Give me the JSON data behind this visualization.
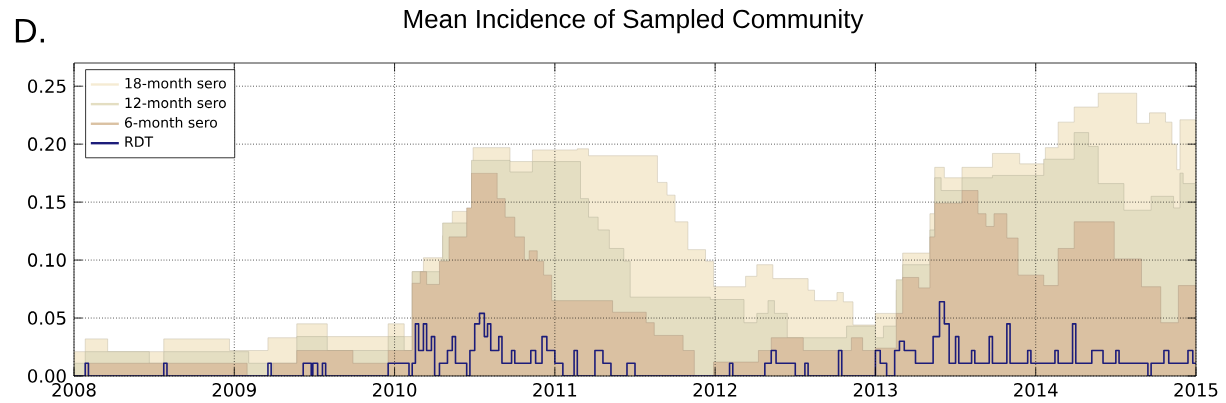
{
  "chart_data": {
    "type": "area",
    "title": "Mean Incidence of Sampled Community",
    "annotations": [
      "D."
    ],
    "xlim": [
      2008,
      2015
    ],
    "ylim": [
      0,
      0.27
    ],
    "xticks": [
      2008,
      2009,
      2010,
      2011,
      2012,
      2013,
      2014,
      2015
    ],
    "yticks": [
      {
        "value": 0,
        "label": "0.00"
      },
      {
        "value": 0.05,
        "label": "0.05"
      },
      {
        "value": 0.1,
        "label": "0.10"
      },
      {
        "value": 0.15,
        "label": "0.15"
      },
      {
        "value": 0.2,
        "label": "0.20"
      },
      {
        "value": 0.25,
        "label": "0.25"
      }
    ],
    "grid": true,
    "legend": "top left",
    "series": [
      {
        "name": "18-month sero",
        "color": "#f5ebd3",
        "x": [
          2008.0,
          2008.07,
          2008.21,
          2008.56,
          2008.97,
          2009.21,
          2009.39,
          2009.58,
          2009.96,
          2010.06,
          2010.11,
          2010.18,
          2010.3,
          2010.36,
          2010.49,
          2010.72,
          2010.86,
          2011.14,
          2011.21,
          2011.64,
          2011.7,
          2011.75,
          2011.83,
          2011.94,
          2011.99,
          2012.19,
          2012.26,
          2012.36,
          2012.58,
          2012.62,
          2012.76,
          2012.8,
          2012.86,
          2013.0,
          2013.13,
          2013.17,
          2013.34,
          2013.37,
          2013.43,
          2013.54,
          2013.73,
          2013.9,
          2014.06,
          2014.14,
          2014.24,
          2014.39,
          2014.63,
          2014.71,
          2014.81,
          2014.85,
          2014.88,
          2014.9,
          2015.0
        ],
        "values": [
          0.021,
          0.032,
          0.021,
          0.032,
          0.022,
          0.033,
          0.045,
          0.034,
          0.045,
          0.034,
          0.09,
          0.102,
          0.121,
          0.142,
          0.197,
          0.185,
          0.195,
          0.196,
          0.19,
          0.167,
          0.156,
          0.133,
          0.109,
          0.099,
          0.077,
          0.086,
          0.096,
          0.084,
          0.074,
          0.065,
          0.072,
          0.064,
          0.044,
          0.054,
          0.074,
          0.106,
          0.14,
          0.18,
          0.171,
          0.18,
          0.192,
          0.183,
          0.197,
          0.219,
          0.232,
          0.244,
          0.218,
          0.227,
          0.219,
          0.2,
          0.178,
          0.221,
          0.221
        ]
      },
      {
        "name": "12-month sero",
        "color": "#e4dec2",
        "x": [
          2008.0,
          2008.07,
          2008.47,
          2008.56,
          2009.09,
          2009.39,
          2009.58,
          2009.96,
          2010.06,
          2010.11,
          2010.3,
          2010.48,
          2010.72,
          2010.86,
          2011.16,
          2011.21,
          2011.27,
          2011.34,
          2011.43,
          2011.47,
          2011.97,
          2012.18,
          2012.26,
          2012.33,
          2012.37,
          2012.45,
          2012.82,
          2013.0,
          2013.05,
          2013.13,
          2013.17,
          2013.34,
          2013.37,
          2013.41,
          2013.54,
          2013.73,
          2014.05,
          2014.24,
          2014.33,
          2014.39,
          2014.55,
          2014.72,
          2014.86,
          2014.9,
          2014.92,
          2015.0
        ],
        "values": [
          0.011,
          0.021,
          0.011,
          0.021,
          0.011,
          0.034,
          0.022,
          0.034,
          0.022,
          0.09,
          0.132,
          0.186,
          0.176,
          0.185,
          0.153,
          0.137,
          0.126,
          0.11,
          0.099,
          0.068,
          0.066,
          0.046,
          0.054,
          0.065,
          0.054,
          0.033,
          0.043,
          0.033,
          0.043,
          0.083,
          0.096,
          0.126,
          0.171,
          0.16,
          0.171,
          0.173,
          0.187,
          0.21,
          0.198,
          0.166,
          0.143,
          0.155,
          0.145,
          0.175,
          0.166,
          0.166
        ]
      },
      {
        "name": "6-month sero",
        "color": "#dac1a2",
        "x": [
          2008.0,
          2008.07,
          2009.08,
          2009.24,
          2009.39,
          2009.74,
          2009.96,
          2010.11,
          2010.16,
          2010.2,
          2010.28,
          2010.34,
          2010.45,
          2010.48,
          2010.64,
          2010.69,
          2010.75,
          2010.81,
          2010.84,
          2010.89,
          2010.93,
          2010.98,
          2011.36,
          2011.57,
          2011.62,
          2011.8,
          2011.87,
          2011.99,
          2012.27,
          2012.35,
          2012.55,
          2012.85,
          2012.92,
          2013.0,
          2013.13,
          2013.17,
          2013.27,
          2013.34,
          2013.37,
          2013.54,
          2013.64,
          2013.69,
          2013.74,
          2013.82,
          2013.89,
          2014.05,
          2014.14,
          2014.24,
          2014.49,
          2014.66,
          2014.78,
          2014.89,
          2015.0
        ],
        "values": [
          0.0,
          0.011,
          0.0,
          0.011,
          0.022,
          0.011,
          0.022,
          0.08,
          0.09,
          0.079,
          0.099,
          0.12,
          0.145,
          0.175,
          0.153,
          0.137,
          0.12,
          0.1,
          0.108,
          0.099,
          0.087,
          0.065,
          0.055,
          0.046,
          0.035,
          0.022,
          0.0,
          0.012,
          0.022,
          0.033,
          0.022,
          0.033,
          0.022,
          0.024,
          0.054,
          0.085,
          0.076,
          0.12,
          0.149,
          0.16,
          0.14,
          0.129,
          0.14,
          0.119,
          0.087,
          0.078,
          0.11,
          0.133,
          0.101,
          0.077,
          0.046,
          0.078,
          0.078
        ]
      },
      {
        "name": "RDT",
        "type": "step",
        "color": "#1c1c7a",
        "x": [
          2008.0,
          2008.07,
          2008.09,
          2008.56,
          2008.58,
          2009.21,
          2009.23,
          2009.43,
          2009.48,
          2009.49,
          2009.52,
          2009.55,
          2009.57,
          2009.96,
          2010.09,
          2010.11,
          2010.13,
          2010.15,
          2010.18,
          2010.2,
          2010.23,
          2010.25,
          2010.28,
          2010.33,
          2010.36,
          2010.38,
          2010.45,
          2010.47,
          2010.5,
          2010.53,
          2010.56,
          2010.58,
          2010.6,
          2010.65,
          2010.67,
          2010.73,
          2010.75,
          2010.85,
          2010.88,
          2010.92,
          2010.95,
          2011.0,
          2011.05,
          2011.12,
          2011.14,
          2011.25,
          2011.3,
          2011.35,
          2011.45,
          2011.5,
          2012.09,
          2012.11,
          2012.31,
          2012.35,
          2012.38,
          2012.5,
          2012.56,
          2012.58,
          2012.77,
          2012.79,
          2013.0,
          2013.03,
          2013.07,
          2013.12,
          2013.15,
          2013.18,
          2013.25,
          2013.36,
          2013.4,
          2013.43,
          2013.46,
          2013.5,
          2013.52,
          2013.6,
          2013.62,
          2013.71,
          2013.73,
          2013.82,
          2013.84,
          2013.95,
          2013.97,
          2014.12,
          2014.14,
          2014.23,
          2014.25,
          2014.35,
          2014.42,
          2014.5,
          2014.52,
          2014.7,
          2014.72,
          2014.8,
          2014.83,
          2014.95,
          2014.98,
          2015.0
        ],
        "values": [
          0.0,
          0.011,
          0.0,
          0.011,
          0.0,
          0.011,
          0.0,
          0.011,
          0.0,
          0.011,
          0.0,
          0.011,
          0.0,
          0.011,
          0.0,
          0.011,
          0.045,
          0.022,
          0.045,
          0.022,
          0.034,
          0.0,
          0.011,
          0.022,
          0.034,
          0.011,
          0.0,
          0.022,
          0.045,
          0.054,
          0.034,
          0.045,
          0.022,
          0.034,
          0.011,
          0.022,
          0.011,
          0.022,
          0.011,
          0.034,
          0.022,
          0.011,
          0.0,
          0.022,
          0.0,
          0.022,
          0.011,
          0.0,
          0.011,
          0.0,
          0.011,
          0.0,
          0.011,
          0.022,
          0.011,
          0.0,
          0.011,
          0.0,
          0.022,
          0.0,
          0.022,
          0.011,
          0.0,
          0.022,
          0.03,
          0.022,
          0.011,
          0.034,
          0.064,
          0.045,
          0.011,
          0.034,
          0.011,
          0.022,
          0.011,
          0.034,
          0.011,
          0.045,
          0.011,
          0.022,
          0.011,
          0.022,
          0.011,
          0.045,
          0.011,
          0.022,
          0.011,
          0.022,
          0.011,
          0.0,
          0.011,
          0.022,
          0.011,
          0.022,
          0.011,
          0.011
        ]
      }
    ]
  }
}
